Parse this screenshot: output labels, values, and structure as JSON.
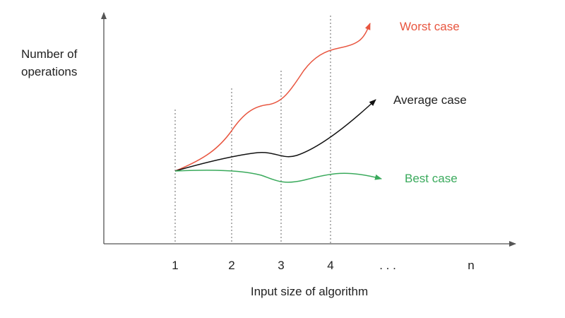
{
  "y_axis_label": [
    "Number of",
    "operations"
  ],
  "x_axis_label": "Input size of algorithm",
  "x_tick_labels": [
    "1",
    "2",
    "3",
    "4",
    ". . .",
    "n"
  ],
  "curves": [
    {
      "label": "Worst case"
    },
    {
      "label": "Average case"
    },
    {
      "label": "Best case"
    }
  ]
}
